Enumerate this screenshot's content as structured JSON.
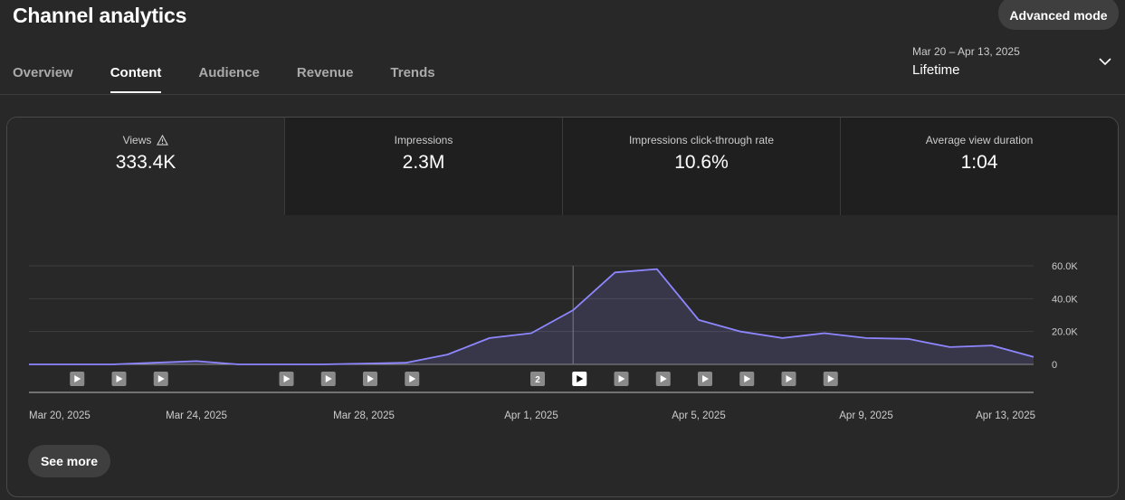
{
  "header": {
    "title": "Channel analytics",
    "advanced_mode": "Advanced mode",
    "date_range": "Mar 20 – Apr 13, 2025",
    "date_label": "Lifetime"
  },
  "tabs": [
    {
      "label": "Overview",
      "active": false
    },
    {
      "label": "Content",
      "active": true
    },
    {
      "label": "Audience",
      "active": false
    },
    {
      "label": "Revenue",
      "active": false
    },
    {
      "label": "Trends",
      "active": false
    }
  ],
  "metrics": [
    {
      "label": "Views",
      "value": "333.4K",
      "warning_icon": "warning-icon"
    },
    {
      "label": "Impressions",
      "value": "2.3M"
    },
    {
      "label": "Impressions click-through rate",
      "value": "10.6%"
    },
    {
      "label": "Average view duration",
      "value": "1:04"
    }
  ],
  "chart_data": {
    "type": "area",
    "x": [
      "Mar 20",
      "Mar 21",
      "Mar 22",
      "Mar 23",
      "Mar 24",
      "Mar 25",
      "Mar 26",
      "Mar 27",
      "Mar 28",
      "Mar 29",
      "Mar 30",
      "Mar 31",
      "Apr 1",
      "Apr 2",
      "Apr 3",
      "Apr 4",
      "Apr 5",
      "Apr 6",
      "Apr 7",
      "Apr 8",
      "Apr 9",
      "Apr 10",
      "Apr 11",
      "Apr 12",
      "Apr 13"
    ],
    "series": [
      {
        "values": [
          0,
          0,
          0,
          1000,
          2000,
          0,
          0,
          0,
          500,
          1000,
          6000,
          16000,
          19000,
          33000,
          56000,
          58000,
          27000,
          20000,
          16000,
          19000,
          16000,
          15500,
          10500,
          11500,
          4500
        ]
      }
    ],
    "yticks": [
      "60.0K",
      "40.0K",
      "20.0K",
      "0"
    ],
    "ylim": [
      0,
      60000
    ],
    "xtick_labels": [
      "Mar 20, 2025",
      "Mar 24, 2025",
      "Mar 28, 2025",
      "Apr 1, 2025",
      "Apr 5, 2025",
      "Apr 9, 2025",
      "Apr 13, 2025"
    ],
    "hover_index": 13,
    "line_color": "#8e86ff",
    "grid": true,
    "markers": [
      {
        "index": 1,
        "kind": "video"
      },
      {
        "index": 2,
        "kind": "video"
      },
      {
        "index": 3,
        "kind": "video"
      },
      {
        "index": 6,
        "kind": "video"
      },
      {
        "index": 7,
        "kind": "video"
      },
      {
        "index": 8,
        "kind": "video"
      },
      {
        "index": 9,
        "kind": "video"
      },
      {
        "index": 12,
        "kind": "count",
        "label": "2"
      },
      {
        "index": 13,
        "kind": "video",
        "active": true
      },
      {
        "index": 14,
        "kind": "video"
      },
      {
        "index": 15,
        "kind": "video"
      },
      {
        "index": 16,
        "kind": "video"
      },
      {
        "index": 17,
        "kind": "video"
      },
      {
        "index": 18,
        "kind": "video"
      },
      {
        "index": 19,
        "kind": "video"
      }
    ]
  },
  "footer": {
    "see_more": "See more"
  }
}
